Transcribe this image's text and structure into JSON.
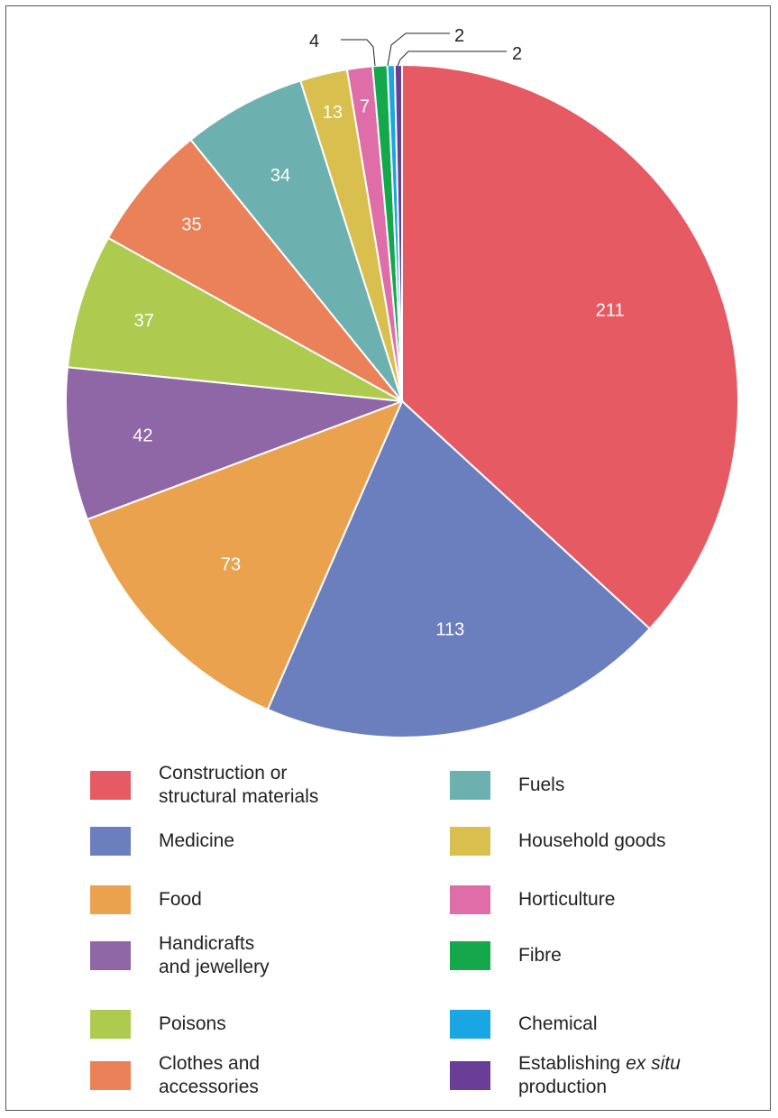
{
  "chart_data": {
    "type": "pie",
    "title": "",
    "start": "top-clockwise",
    "slices": [
      {
        "label": "Construction or structural materials",
        "value": 211,
        "color": "#e55a63"
      },
      {
        "label": "Medicine",
        "value": 113,
        "color": "#6b7fbe"
      },
      {
        "label": "Food",
        "value": 73,
        "color": "#eaa24f"
      },
      {
        "label": "Handicrafts and jewellery",
        "value": 42,
        "color": "#8f66a6"
      },
      {
        "label": "Poisons",
        "value": 37,
        "color": "#aecb50"
      },
      {
        "label": "Clothes and accessories",
        "value": 35,
        "color": "#ea8158"
      },
      {
        "label": "Fuels",
        "value": 34,
        "color": "#6cb1b0"
      },
      {
        "label": "Household goods",
        "value": 13,
        "color": "#d9bf4d"
      },
      {
        "label": "Horticulture",
        "value": 7,
        "color": "#df6da8"
      },
      {
        "label": "Fibre",
        "value": 4,
        "color": "#15a84a"
      },
      {
        "label": "Chemical",
        "value": 2,
        "color": "#1aa5e3"
      },
      {
        "label": "Establishing ex situ production",
        "value": 2,
        "color": "#6a3d96"
      }
    ],
    "data_labels": [
      "211",
      "113",
      "73",
      "42",
      "37",
      "35",
      "34",
      "13",
      "7",
      "4",
      "2",
      "2"
    ],
    "legend": {
      "left": [
        {
          "line1": "Construction or",
          "line2": "structural materials",
          "color": "#e55a63"
        },
        {
          "line1": "Medicine",
          "line2": "",
          "color": "#6b7fbe"
        },
        {
          "line1": "Food",
          "line2": "",
          "color": "#eaa24f"
        },
        {
          "line1": "Handicrafts",
          "line2": "and jewellery",
          "color": "#8f66a6"
        },
        {
          "line1": "Poisons",
          "line2": "",
          "color": "#aecb50"
        },
        {
          "line1": "Clothes and",
          "line2": "accessories",
          "color": "#ea8158"
        }
      ],
      "right": [
        {
          "line1": "Fuels",
          "line2": "",
          "color": "#6cb1b0"
        },
        {
          "line1": "Household goods",
          "line2": "",
          "color": "#d9bf4d"
        },
        {
          "line1": "Horticulture",
          "line2": "",
          "color": "#df6da8"
        },
        {
          "line1": "Fibre",
          "line2": "",
          "color": "#15a84a"
        },
        {
          "line1": "Chemical",
          "line2": "",
          "color": "#1aa5e3"
        },
        {
          "line1": "Establishing ",
          "line1_italic": "ex situ",
          "line2": "production",
          "color": "#6a3d96"
        }
      ]
    }
  }
}
